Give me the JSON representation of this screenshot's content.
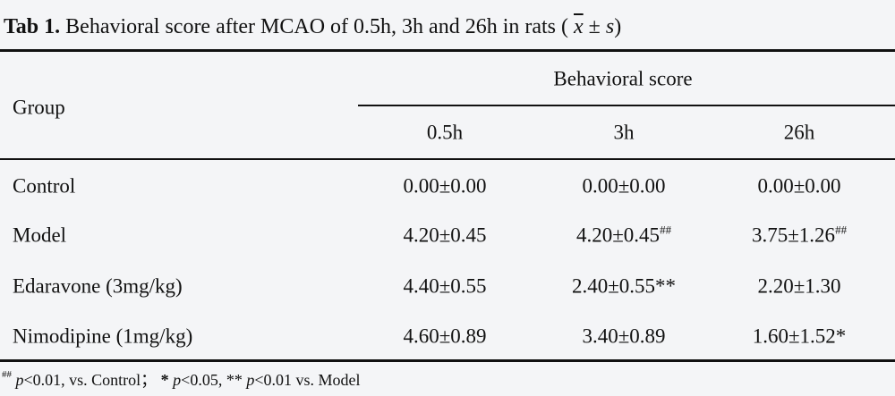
{
  "title": {
    "label": "Tab 1.",
    "text": "Behavioral score after MCAO of 0.5h, 3h and 26h in rats (",
    "mean": "x",
    "pm": "±",
    "sd": "s",
    "close": ")"
  },
  "table": {
    "group_header": "Group",
    "span_header": "Behavioral score",
    "columns": [
      "0.5h",
      "3h",
      "26h"
    ],
    "rows": [
      {
        "group": "Control",
        "cells": [
          {
            "text": "0.00±0.00"
          },
          {
            "text": "0.00±0.00"
          },
          {
            "text": "0.00±0.00"
          }
        ]
      },
      {
        "group": "Model",
        "cells": [
          {
            "text": "4.20±0.45"
          },
          {
            "text": "4.20±0.45",
            "sup": "##"
          },
          {
            "text": "3.75±1.26",
            "sup": "##"
          }
        ]
      },
      {
        "group": "Edaravone (3mg/kg)",
        "cells": [
          {
            "text": "4.40±0.55"
          },
          {
            "text": "2.40±0.55**"
          },
          {
            "text": "2.20±1.30"
          }
        ]
      },
      {
        "group": "Nimodipine (1mg/kg)",
        "cells": [
          {
            "text": "4.60±0.89"
          },
          {
            "text": "3.40±0.89"
          },
          {
            "text": "1.60±1.52*"
          }
        ]
      }
    ]
  },
  "footnote": {
    "parts": [
      "##",
      "p",
      "<0.01, vs. Control；",
      "* ",
      "p",
      "<0.05, ** ",
      "p",
      "<0.01 vs. Model"
    ]
  }
}
